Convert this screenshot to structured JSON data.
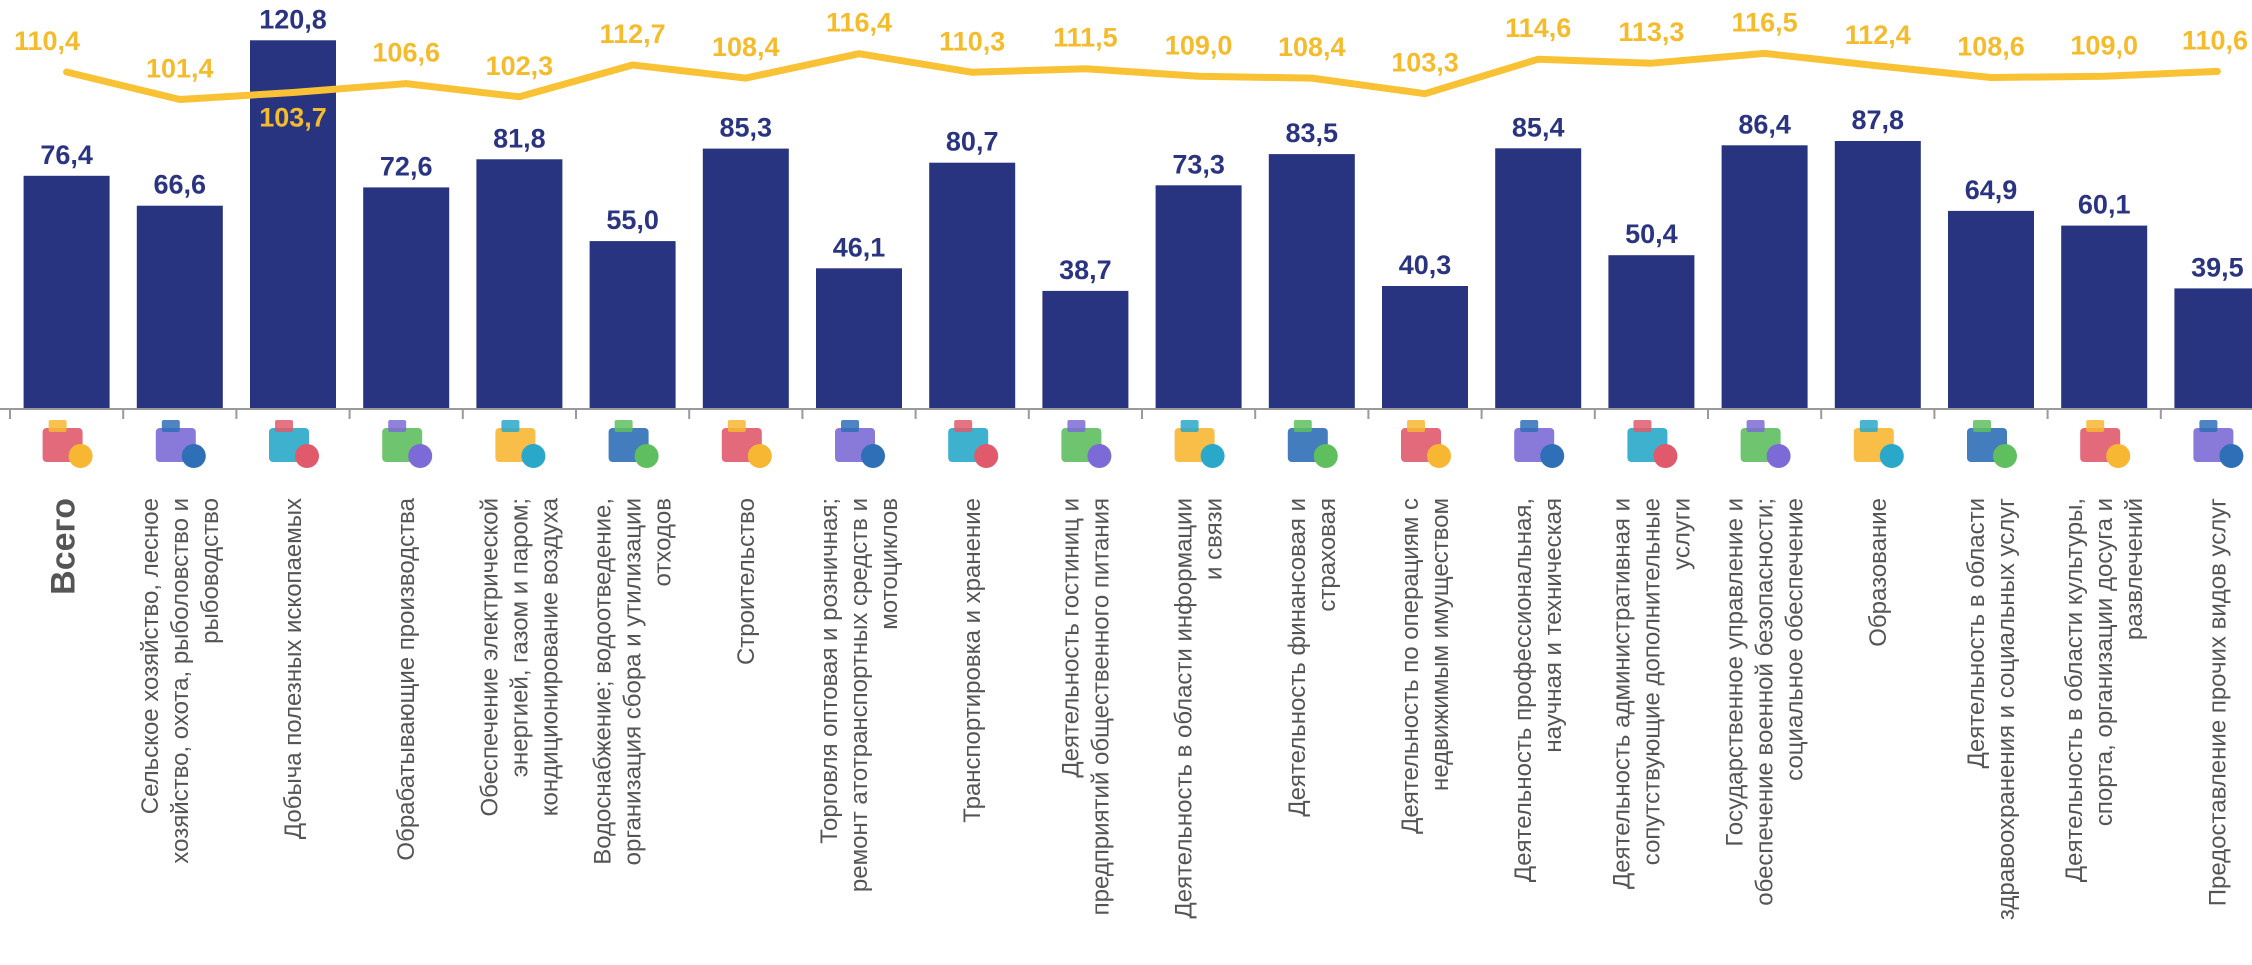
{
  "colors": {
    "bar": "#283480",
    "line": "#f9c235",
    "line_label": "#f4bc2c",
    "bar_label": "#2a3480",
    "axis": "#9a9a9a",
    "category_text": "#555555"
  },
  "chart_data": {
    "type": "bar",
    "title": "",
    "xlabel": "",
    "ylabel": "",
    "ylim": [
      0,
      134
    ],
    "grid": false,
    "legend": "none",
    "categories": [
      {
        "lines": [
          "Всего"
        ],
        "icon": "folder-coins-icon"
      },
      {
        "lines": [
          "Сельское хозяйство, лесное",
          "хозяйство, охота, рыболовство и",
          "рыбоводство"
        ],
        "icon": "farm-tools-icon"
      },
      {
        "lines": [
          "Добыча полезных ископаемых"
        ],
        "icon": "shovel-gem-icon"
      },
      {
        "lines": [
          "Обрабатывающие производства"
        ],
        "icon": "hammer-gear-icon"
      },
      {
        "lines": [
          "Обеспечение электрической",
          "энергией, газом и паром;",
          "кондиционирование воздуха"
        ],
        "icon": "gas-bulb-icon"
      },
      {
        "lines": [
          "Водоснабжение; водоотведение,",
          "организация сбора и утилизации",
          "отходов"
        ],
        "icon": "water-pipe-icon"
      },
      {
        "lines": [
          "Строительство"
        ],
        "icon": "brick-trowel-icon"
      },
      {
        "lines": [
          "Торговля оптовая и розничная;",
          "ремонт атотранспортных средств и",
          "мотоциклов"
        ],
        "icon": "car-wrench-icon"
      },
      {
        "lines": [
          "Транспортировка и хранение"
        ],
        "icon": "bus-box-icon"
      },
      {
        "lines": [
          "Деятельность гостиниц и",
          "предприятий общественного питания"
        ],
        "icon": "food-platter-icon"
      },
      {
        "lines": [
          "Деятельность в области информации",
          "и связи"
        ],
        "icon": "phone-mail-icon"
      },
      {
        "lines": [
          "Деятельность финансовая и",
          "страховая"
        ],
        "icon": "document-coins-icon"
      },
      {
        "lines": [
          "Деятельность по операциям с",
          "недвижимым имуществом"
        ],
        "icon": "house-coins-icon"
      },
      {
        "lines": [
          "Деятельность профессиональная,",
          "научная и техническая"
        ],
        "icon": "microscope-icon"
      },
      {
        "lines": [
          "Деятельность административная и",
          "сопутствующие дополнительные",
          "услуги"
        ],
        "icon": "office-building-icon"
      },
      {
        "lines": [
          "Государственное управление и",
          "обеспечение военной безопасности;",
          "социальное обеспечение"
        ],
        "icon": "official-person-icon"
      },
      {
        "lines": [
          "Образование"
        ],
        "icon": "graduation-cap-icon"
      },
      {
        "lines": [
          "Деятельность в области",
          "здравоохранения и социальных услуг"
        ],
        "icon": "stethoscope-icon"
      },
      {
        "lines": [
          "Деятельность в области культуры,",
          "спорта, организации досуга и",
          "развлечений"
        ],
        "icon": "culture-media-icon"
      },
      {
        "lines": [
          "Предоставление прочих видов услуг"
        ],
        "icon": "service-person-icon"
      }
    ],
    "series": [
      {
        "type": "bar",
        "values": [
          76.4,
          66.6,
          120.8,
          72.6,
          81.8,
          55.0,
          85.3,
          46.1,
          80.7,
          38.7,
          73.3,
          83.5,
          40.3,
          85.4,
          50.4,
          86.4,
          87.8,
          64.9,
          60.1,
          39.5
        ],
        "labels": [
          "76,4",
          "66,6",
          "120,8",
          "72,6",
          "81,8",
          "55,0",
          "85,3",
          "46,1",
          "80,7",
          "38,7",
          "73,3",
          "83,5",
          "40,3",
          "85,4",
          "50,4",
          "86,4",
          "87,8",
          "64,9",
          "60,1",
          "39,5"
        ]
      },
      {
        "type": "line",
        "values": [
          110.4,
          101.4,
          103.7,
          106.6,
          102.3,
          112.7,
          108.4,
          116.4,
          110.3,
          111.5,
          109.0,
          108.4,
          103.3,
          114.6,
          113.3,
          116.5,
          112.4,
          108.6,
          109.0,
          110.6
        ],
        "labels": [
          "110,4",
          "101,4",
          "103,7",
          "106,6",
          "102,3",
          "112,7",
          "108,4",
          "116,4",
          "110,3",
          "111,5",
          "109,0",
          "108,4",
          "103,3",
          "114,6",
          "113,3",
          "116,5",
          "112,4",
          "108,6",
          "109,0",
          "110,6"
        ]
      }
    ]
  }
}
